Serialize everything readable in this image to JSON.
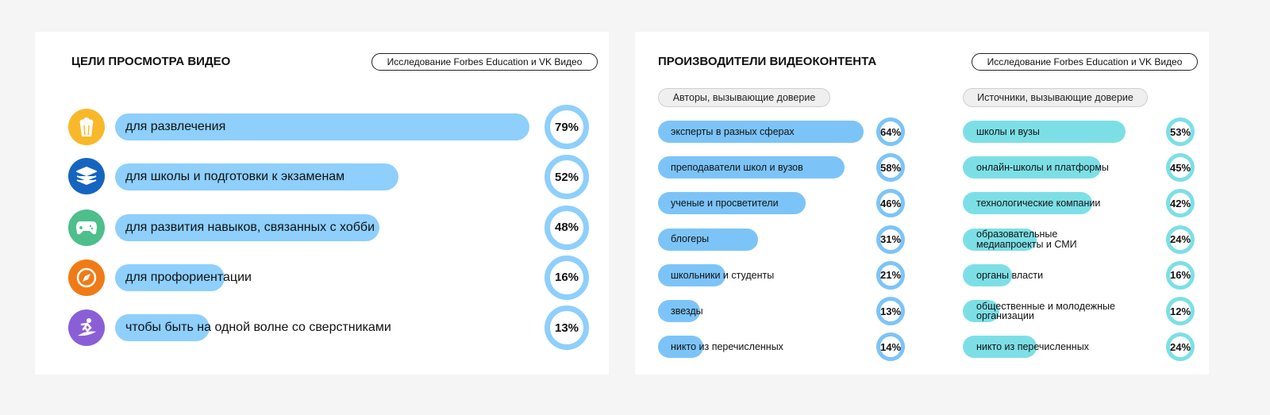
{
  "chart_data": [
    {
      "type": "bar",
      "title": "ЦЕЛИ ПРОСМОТРА ВИДЕО",
      "note": "Исследование Forbes Education и VK Видео",
      "color": "#8ecffc",
      "categories": [
        "для развлечения",
        "для школы и подготовки к экзаменам",
        "для развития навыков, связанных с хобби",
        "для профориентации",
        "чтобы быть на одной волне со сверстниками"
      ],
      "values": [
        79,
        52,
        48,
        16,
        13
      ],
      "value_labels": [
        "79%",
        "52%",
        "48%",
        "16%",
        "13%"
      ]
    },
    {
      "type": "bar",
      "title": "ПРОИЗВОДИТЕЛИ ВИДЕОКОНТЕНТА",
      "note": "Исследование Forbes Education и VK Видео",
      "subtitle": "Авторы, вызывающие доверие",
      "color": "#7cc4f8",
      "categories": [
        "эксперты в разных сферах",
        "преподаватели школ и вузов",
        "ученые и просветители",
        "блогеры",
        "школьники и студенты",
        "звезды",
        "никто из перечисленных"
      ],
      "values": [
        64,
        58,
        46,
        31,
        21,
        13,
        14
      ],
      "value_labels": [
        "64%",
        "58%",
        "46%",
        "31%",
        "21%",
        "13%",
        "14%"
      ]
    },
    {
      "type": "bar",
      "subtitle": "Источники, вызывающие доверие",
      "color": "#7ddfe6",
      "categories": [
        "школы и вузы",
        "онлайн-школы и платформы",
        "технологические компании",
        "образовательные\nмедиапроекты и СМИ",
        "органы власти",
        "общественные и молодежные\nорганизации",
        "никто из перечисленных"
      ],
      "values": [
        53,
        45,
        42,
        24,
        16,
        12,
        24
      ],
      "value_labels": [
        "53%",
        "45%",
        "42%",
        "24%",
        "16%",
        "12%",
        "24%"
      ]
    }
  ]
}
